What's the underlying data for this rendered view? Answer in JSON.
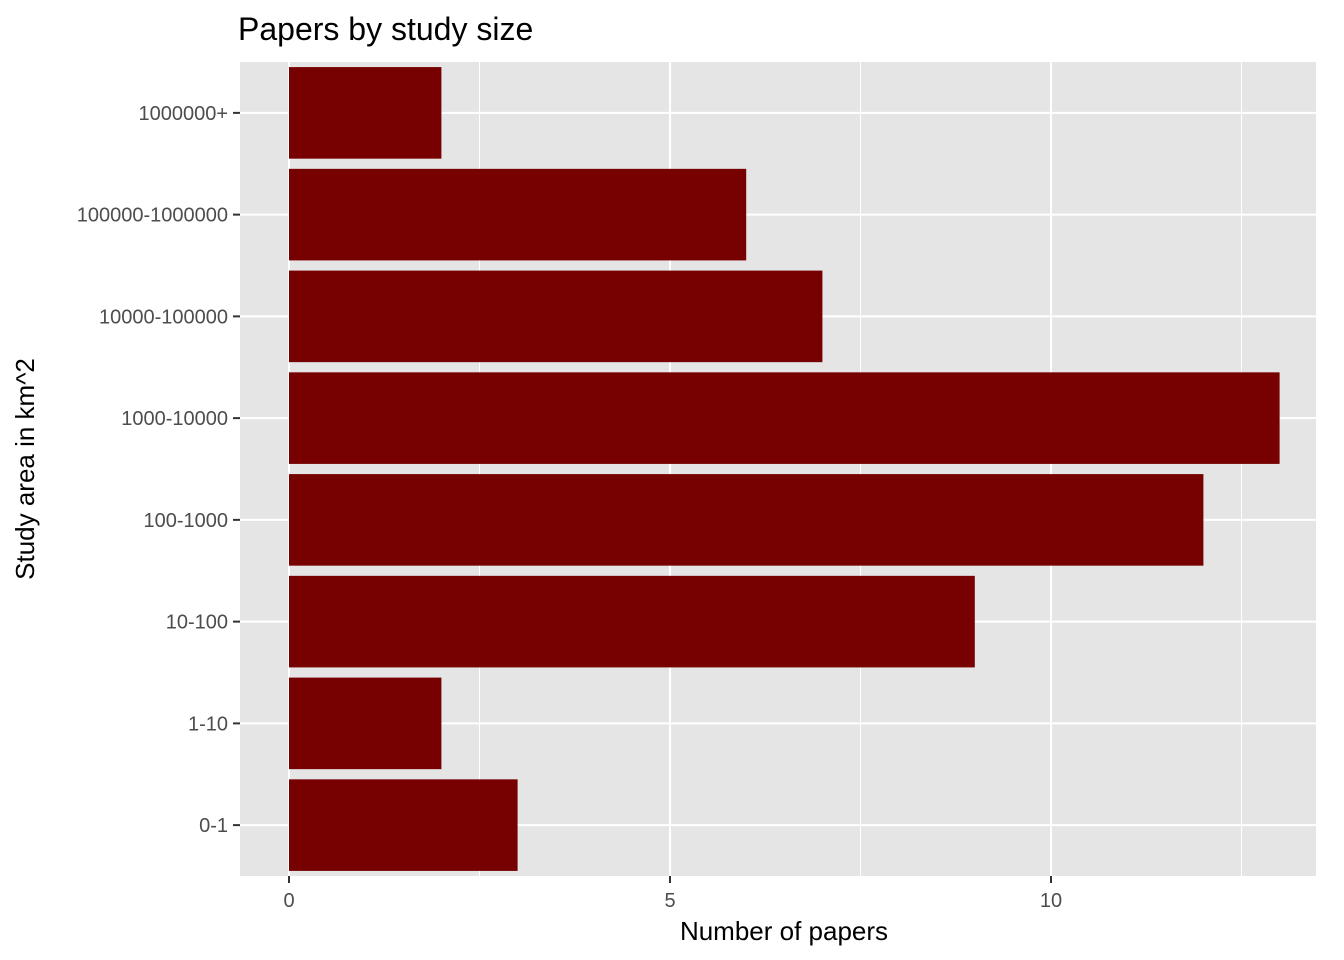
{
  "chart_data": {
    "type": "bar",
    "orientation": "horizontal",
    "title": "Papers by study size",
    "xlabel": "Number of papers",
    "ylabel": "Study area in km^2",
    "categories": [
      "0-1",
      "1-10",
      "10-100",
      "100-1000",
      "1000-10000",
      "10000-100000",
      "100000-1000000",
      "1000000+"
    ],
    "values": [
      3,
      2,
      9,
      12,
      13,
      7,
      6,
      2
    ],
    "xlim": [
      0,
      13.65
    ],
    "xticks": [
      "0",
      "5",
      "10"
    ],
    "grid": true,
    "legend": "none",
    "colors": {
      "bar": "#770000",
      "panel": "#e5e5e5",
      "grid": "#ffffff",
      "tick_text": "#4d4d4d"
    }
  }
}
